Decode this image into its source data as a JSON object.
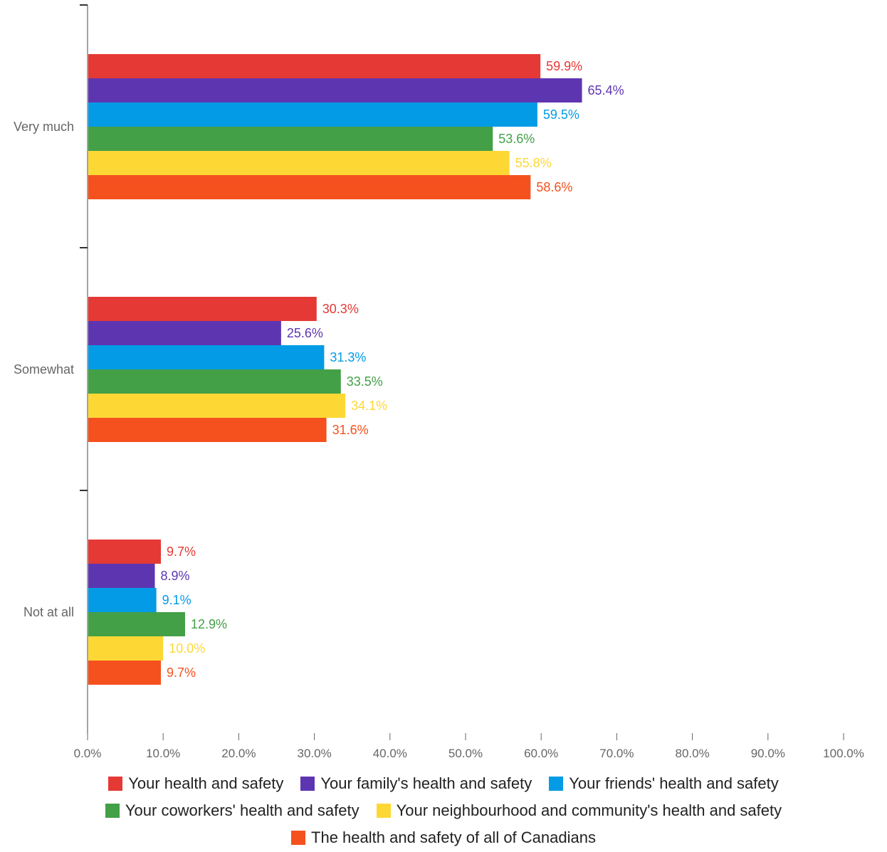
{
  "chart_data": {
    "type": "bar",
    "orientation": "horizontal",
    "categories": [
      "Very much",
      "Somewhat",
      "Not at all"
    ],
    "series": [
      {
        "name": "Your health and safety",
        "color": "#e53935",
        "values": [
          59.9,
          30.3,
          9.7
        ],
        "labels": [
          "59.9%",
          "30.3%",
          "9.7%"
        ]
      },
      {
        "name": "Your family's health and safety",
        "color": "#5e35b1",
        "values": [
          65.4,
          25.6,
          8.9
        ],
        "labels": [
          "65.4%",
          "25.6%",
          "8.9%"
        ]
      },
      {
        "name": "Your friends' health and safety",
        "color": "#039be5",
        "values": [
          59.5,
          31.3,
          9.1
        ],
        "labels": [
          "59.5%",
          "31.3%",
          "9.1%"
        ]
      },
      {
        "name": "Your coworkers' health and safety",
        "color": "#43a047",
        "values": [
          53.6,
          33.5,
          12.9
        ],
        "labels": [
          "53.6%",
          "33.5%",
          "12.9%"
        ]
      },
      {
        "name": "Your neighbourhood and community's health and safety",
        "color": "#fdd835",
        "values": [
          55.8,
          34.1,
          10.0
        ],
        "labels": [
          "55.8%",
          "34.1%",
          "10.0%"
        ]
      },
      {
        "name": "The health and safety of all of Canadians",
        "color": "#f4511e",
        "values": [
          58.6,
          31.6,
          9.7
        ],
        "labels": [
          "58.6%",
          "31.6%",
          "9.7%"
        ]
      }
    ],
    "xlim": [
      0,
      100
    ],
    "x_ticks": [
      "0.0%",
      "10.0%",
      "20.0%",
      "30.0%",
      "40.0%",
      "50.0%",
      "60.0%",
      "70.0%",
      "80.0%",
      "90.0%",
      "100.0%"
    ],
    "grid": false,
    "legend_position": "bottom"
  }
}
